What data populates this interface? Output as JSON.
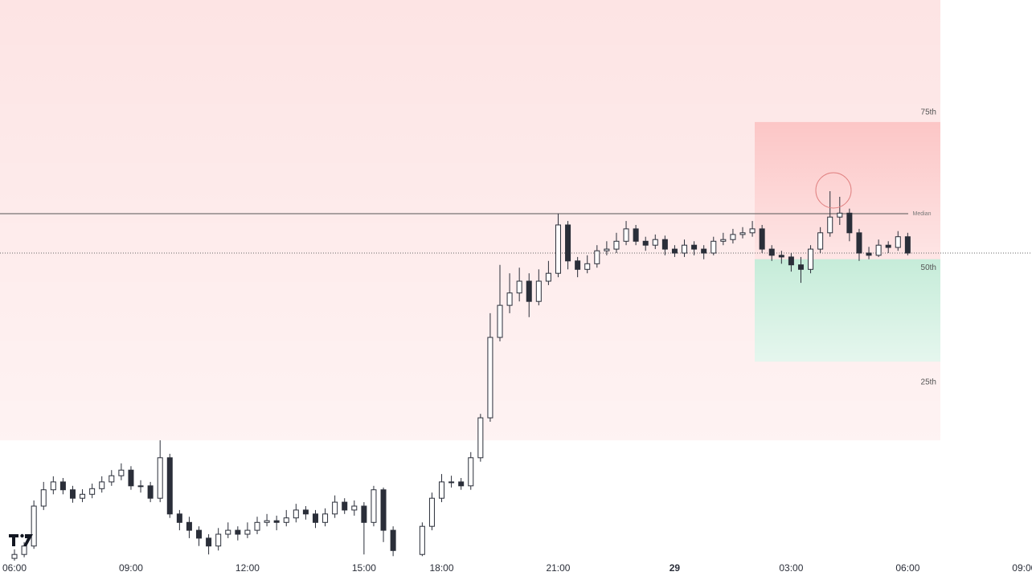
{
  "chart_data": {
    "type": "candlestick",
    "color": "#2a2e39",
    "ylim": [
      0,
      100
    ],
    "categories": [
      "06:00",
      null,
      null,
      null,
      null,
      null,
      null,
      null,
      null,
      null,
      null,
      null,
      "09:00",
      null,
      null,
      null,
      null,
      null,
      null,
      null,
      null,
      null,
      null,
      null,
      "12:00",
      null,
      null,
      null,
      null,
      null,
      null,
      null,
      null,
      null,
      null,
      null,
      "15:00",
      null,
      null,
      null,
      null,
      null,
      null,
      null,
      "18:00",
      null,
      null,
      null,
      null,
      null,
      null,
      null,
      null,
      null,
      null,
      null,
      "21:00",
      null,
      null,
      null,
      null,
      null,
      null,
      null,
      null,
      null,
      null,
      null,
      "29",
      null,
      null,
      null,
      null,
      null,
      null,
      null,
      null,
      null,
      null,
      null,
      "03:00",
      null,
      null,
      null,
      null,
      null,
      null,
      null,
      null,
      null,
      null,
      null,
      "06:00",
      null,
      null,
      null,
      null,
      null,
      null,
      null,
      null,
      null,
      null,
      null,
      "09:00"
    ],
    "open": [
      0.7,
      1.4,
      2.9,
      10,
      12.9,
      14.3,
      12.9,
      11.4,
      12.1,
      13.1,
      14.3,
      15.4,
      16.4,
      13.6,
      13.6,
      11.4,
      18.6,
      8.6,
      7.1,
      5.7,
      4.3,
      2.9,
      5,
      5.7,
      5,
      5.7,
      7.1,
      7.4,
      7.1,
      7.9,
      9.3,
      8.6,
      7.1,
      8.6,
      10.7,
      9.3,
      10,
      7.1,
      12.9,
      5.7,
      null,
      null,
      1.4,
      6.4,
      11.4,
      14.3,
      14.3,
      13.6,
      18.6,
      25.7,
      40,
      45.7,
      47.9,
      50,
      46.4,
      50,
      51.4,
      60,
      53.6,
      52.1,
      53.1,
      55.4,
      55.7,
      57.1,
      59.3,
      57.1,
      56.4,
      57.4,
      55.7,
      55,
      56.4,
      55.7,
      55,
      57.1,
      57.4,
      58.3,
      58.6,
      59.3,
      55.7,
      54.6,
      54.3,
      52.9,
      52.1,
      55.7,
      58.6,
      61.4,
      62.1,
      58.6,
      55,
      54.6,
      56.4,
      56,
      57.9,
      null,
      null,
      null,
      null,
      null,
      null,
      null,
      null,
      null,
      null,
      null,
      null
    ],
    "high": [
      2.3,
      3.6,
      11,
      14.3,
      15.3,
      15,
      13.6,
      13,
      14,
      15.3,
      16.4,
      17.6,
      17.1,
      14.6,
      14.3,
      21.7,
      19.3,
      9.3,
      8.1,
      6.4,
      5,
      6.1,
      7.1,
      6.4,
      7.1,
      8.1,
      8.6,
      8.3,
      9.3,
      10.4,
      10,
      9.3,
      9.6,
      11.9,
      11.4,
      11,
      10.7,
      13.6,
      13.3,
      6.4,
      null,
      null,
      7.1,
      12.4,
      15.7,
      15.4,
      15,
      19.6,
      26.4,
      44.3,
      52.9,
      51.4,
      52.4,
      51.4,
      52.1,
      53.6,
      62,
      60.7,
      54.3,
      54.6,
      56.4,
      57.1,
      58.6,
      60.7,
      60,
      57.9,
      58.3,
      58.1,
      56.4,
      57.4,
      57.1,
      56.4,
      57.9,
      58.6,
      59.3,
      59.6,
      60.7,
      60,
      56.4,
      55.4,
      55,
      54.3,
      56.4,
      59.6,
      66,
      65,
      62.9,
      59.3,
      56.1,
      57.4,
      57.1,
      58.9,
      58.6,
      null,
      null,
      null,
      null,
      null,
      null,
      null,
      null,
      null,
      null,
      null,
      null
    ],
    "low": [
      0.3,
      0.9,
      2.4,
      9.3,
      12.1,
      12.1,
      10.6,
      10.7,
      11.4,
      12.4,
      13.6,
      14.6,
      12.9,
      12.4,
      10.7,
      10.7,
      7.9,
      5.7,
      4.3,
      2.9,
      1.4,
      2.1,
      4.3,
      3.9,
      4.3,
      5,
      6.4,
      5.7,
      6.4,
      7.1,
      7.6,
      6.1,
      6.4,
      7.9,
      8.6,
      8.3,
      1.4,
      6.4,
      3.6,
      1.1,
      null,
      null,
      1.1,
      5.7,
      10.7,
      13.3,
      12.9,
      12.9,
      17.9,
      25,
      39.3,
      44.3,
      46.4,
      43.6,
      45.7,
      49.3,
      50.7,
      52.1,
      50.7,
      51.4,
      52.4,
      54.6,
      55,
      56.4,
      56.4,
      55.4,
      55.7,
      54.6,
      54.3,
      54.3,
      54.6,
      53.9,
      54.6,
      56.4,
      56.7,
      57.6,
      57.9,
      55,
      53.6,
      53.1,
      51.7,
      49.7,
      51.4,
      55,
      57.9,
      60,
      57.1,
      53.6,
      53.9,
      54.3,
      55,
      55.4,
      54.6,
      null,
      null,
      null,
      null,
      null,
      null,
      null,
      null,
      null,
      null,
      null,
      null
    ],
    "close": [
      1.4,
      2.9,
      10,
      12.9,
      14.3,
      12.9,
      11.4,
      12.1,
      13.1,
      14.3,
      15.4,
      16.4,
      13.6,
      13.6,
      11.4,
      18.6,
      8.6,
      7.1,
      5.7,
      4.3,
      2.9,
      5,
      5.7,
      5,
      5.7,
      7.1,
      7.4,
      7.1,
      7.9,
      9.3,
      8.6,
      7.1,
      8.6,
      10.7,
      9.3,
      10,
      7.1,
      12.9,
      5.7,
      2.1,
      null,
      null,
      6.4,
      11.4,
      14.3,
      14.3,
      13.6,
      18.6,
      25.7,
      40,
      45.7,
      47.9,
      50,
      46.4,
      50,
      51.4,
      60,
      53.6,
      52.1,
      53.1,
      55.4,
      55.7,
      57.1,
      59.3,
      57.1,
      56.4,
      57.4,
      55.7,
      55,
      56.4,
      55.7,
      55,
      57.1,
      57.4,
      58.3,
      58.6,
      59.3,
      55.7,
      54.6,
      54.3,
      52.9,
      52.1,
      55.7,
      58.6,
      61.4,
      62.1,
      58.6,
      55,
      54.6,
      56.4,
      56,
      57.9,
      55,
      null,
      null,
      null,
      null,
      null,
      null,
      null,
      null,
      null,
      null,
      null,
      null
    ],
    "zones": [
      {
        "range": [
          21.7,
          100
        ],
        "color": "#fde4e4"
      },
      {
        "range": [
          53.9,
          78.3
        ],
        "color": "#fcc6c6"
      },
      {
        "range": [
          35.7,
          53.9
        ],
        "color": "#c6ecd9"
      }
    ],
    "levels": [
      {
        "label": "75th",
        "value": 80
      },
      {
        "label": "Median",
        "value": 62
      },
      {
        "label": "50th",
        "value": 52.4
      },
      {
        "label": "25th",
        "value": 32
      }
    ]
  }
}
